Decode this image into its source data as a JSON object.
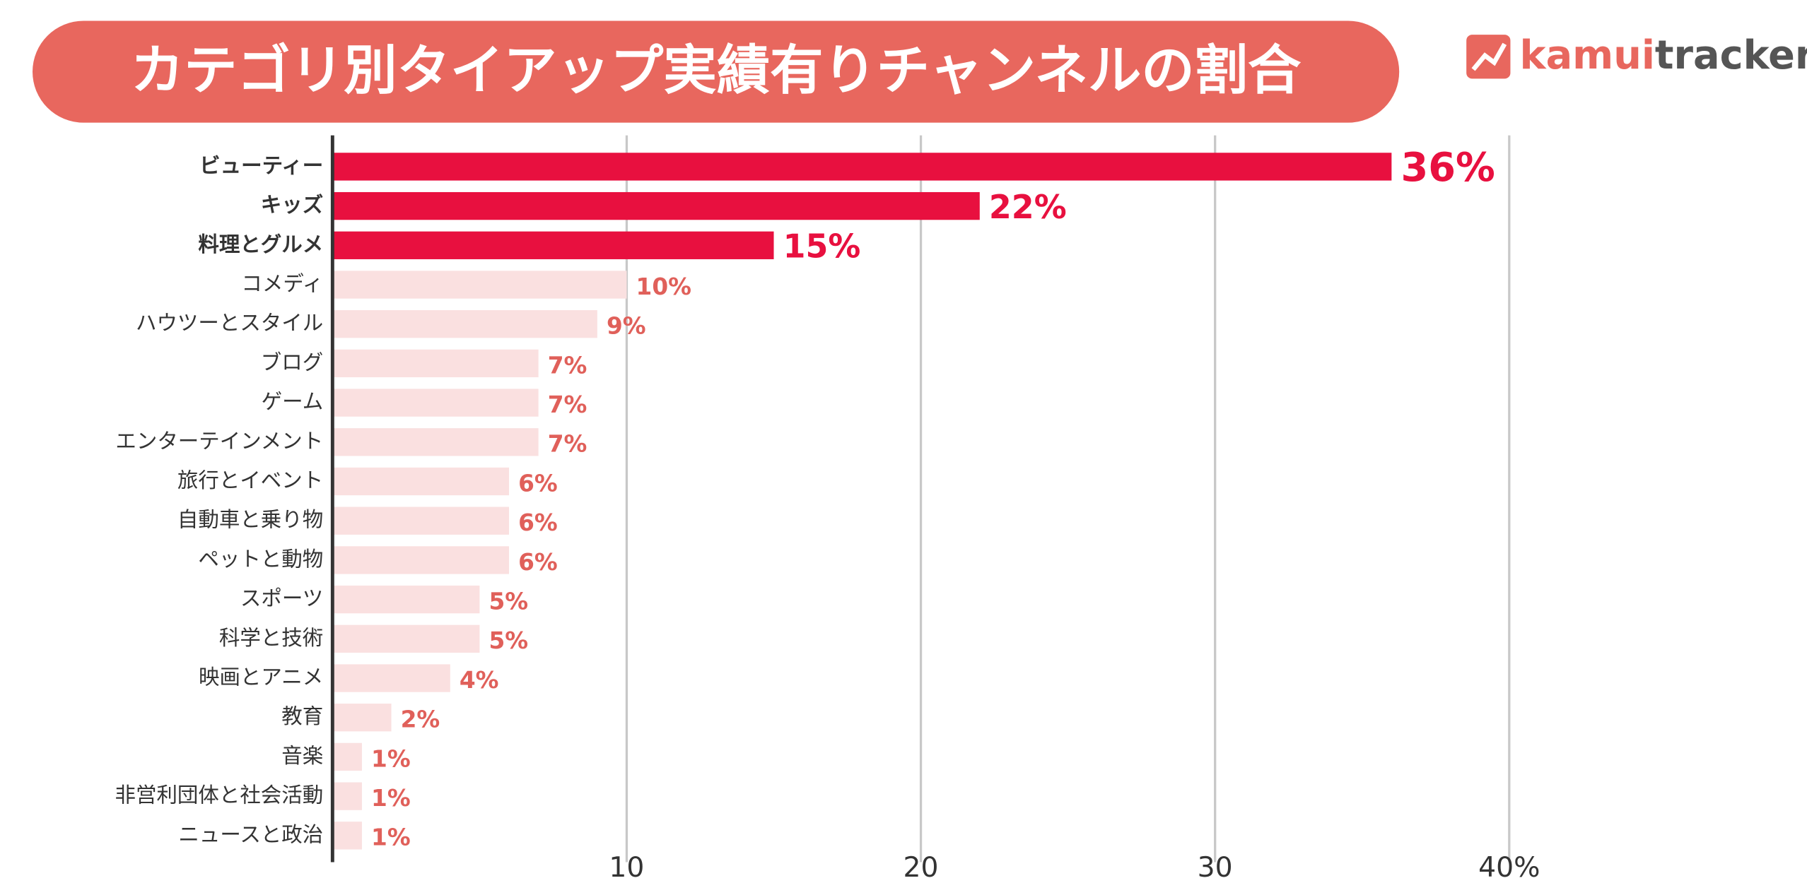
{
  "chart_data": {
    "type": "hbar",
    "title": "カテゴリ別タイアップ実績有りチャンネルの割合",
    "logo": [
      "kamui",
      "tracker"
    ],
    "categories": [
      "ビューティー",
      "キッズ",
      "料理とグルメ",
      "コメディ",
      "ハウツーとスタイル",
      "ブログ",
      "ゲーム",
      "エンターテインメント",
      "旅行とイベント",
      "自動車と乗り物",
      "ペットと動物",
      "スポーツ",
      "科学と技術",
      "映画とアニメ",
      "教育",
      "音楽",
      "非営利団体と社会活動",
      "ニュースと政治"
    ],
    "values": [
      36,
      22,
      15,
      10,
      9,
      7,
      7,
      7,
      6,
      6,
      6,
      5,
      5,
      4,
      2,
      1,
      1,
      1
    ],
    "value_labels": [
      "36%",
      "22%",
      "15%",
      "10%",
      "9%",
      "7%",
      "7%",
      "7%",
      "6%",
      "6%",
      "6%",
      "5%",
      "5%",
      "4%",
      "2%",
      "1%",
      "1%",
      "1%"
    ],
    "colors": [
      "#e8103f",
      "#e8103f",
      "#e8103f",
      "#fae0e0",
      "#fae0e0",
      "#fae0e0",
      "#fae0e0",
      "#fae0e0",
      "#fae0e0",
      "#fae0e0",
      "#fae0e0",
      "#fae0e0",
      "#fae0e0",
      "#fae0e0",
      "#fae0e0",
      "#fae0e0",
      "#fae0e0",
      "#fae0e0"
    ],
    "xlim": [
      0,
      40
    ],
    "xticks": [
      10,
      20,
      30,
      {
        "value": 40,
        "label": "40%"
      }
    ],
    "grid": true
  }
}
